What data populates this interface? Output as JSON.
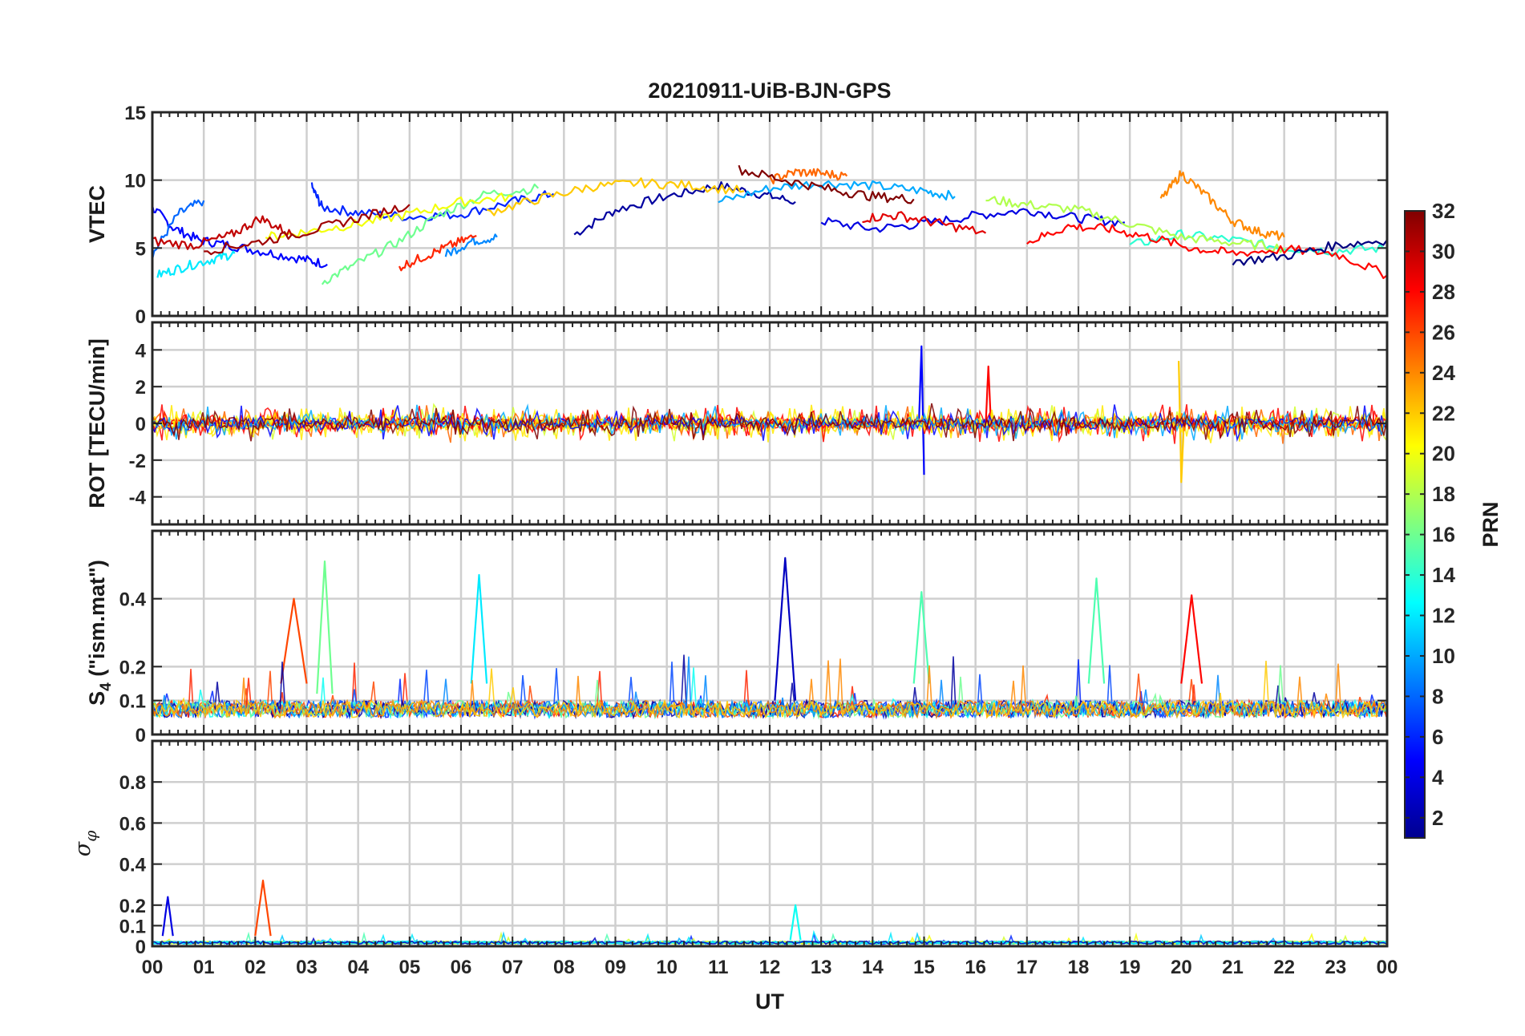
{
  "chart_data": {
    "type": "line",
    "title": "20210911-UiB-BJN-GPS",
    "xlabel": "UT",
    "x_tick_labels": [
      "00",
      "01",
      "02",
      "03",
      "04",
      "05",
      "06",
      "07",
      "08",
      "09",
      "10",
      "11",
      "12",
      "13",
      "14",
      "15",
      "16",
      "17",
      "18",
      "19",
      "20",
      "21",
      "22",
      "23",
      "00"
    ],
    "xlim_hours": [
      0,
      24
    ],
    "grid": true,
    "colormap": "jet",
    "colorbar": {
      "label": "PRN",
      "range": [
        1,
        32
      ],
      "tick_labels": [
        "2",
        "4",
        "6",
        "8",
        "10",
        "12",
        "14",
        "16",
        "18",
        "20",
        "22",
        "24",
        "26",
        "28",
        "30",
        "32"
      ],
      "placement": "right"
    },
    "panels": [
      {
        "ylabel": "VTEC",
        "ylim": [
          0,
          15
        ],
        "yticks": [
          0,
          5,
          10,
          15
        ],
        "tick_labels": [
          "0",
          "5",
          "10",
          "15"
        ],
        "series": [
          {
            "prn": 2,
            "x": [
              8.2,
              9.0,
              10.0,
              11.0,
              11.8,
              12.5
            ],
            "y": [
              6.0,
              7.8,
              8.8,
              9.6,
              9.0,
              8.4
            ]
          },
          {
            "prn": 5,
            "x": [
              0.0,
              0.4,
              0.9,
              1.5,
              2.2,
              2.9,
              3.4
            ],
            "y": [
              8.0,
              6.5,
              5.6,
              5.2,
              4.7,
              4.2,
              3.8
            ]
          },
          {
            "prn": 8,
            "x": [
              0.0,
              0.5,
              1.0
            ],
            "y": [
              4.5,
              7.5,
              8.5
            ]
          },
          {
            "prn": 6,
            "x": [
              3.1,
              3.3,
              4.0,
              5.0,
              6.0,
              7.0,
              7.8
            ],
            "y": [
              9.5,
              8.0,
              7.6,
              7.3,
              7.5,
              8.4,
              9.0
            ]
          },
          {
            "prn": 4,
            "x": [
              13.0,
              14.0,
              15.0,
              16.0,
              17.0,
              18.0,
              18.9
            ],
            "y": [
              7.0,
              6.4,
              6.8,
              7.4,
              7.8,
              7.2,
              6.9
            ]
          },
          {
            "prn": 9,
            "x": [
              5.7,
              6.2,
              6.7
            ],
            "y": [
              4.5,
              5.5,
              5.8
            ]
          },
          {
            "prn": 10,
            "x": [
              11.0,
              12.0,
              13.0,
              14.0,
              15.0,
              15.6
            ],
            "y": [
              8.4,
              9.4,
              9.8,
              9.6,
              9.2,
              8.8
            ]
          },
          {
            "prn": 12,
            "x": [
              0.1,
              0.6,
              1.2,
              1.6
            ],
            "y": [
              3.0,
              3.6,
              4.2,
              4.6
            ]
          },
          {
            "prn": 14,
            "x": [
              19.0,
              20.0,
              21.0,
              22.0,
              23.0,
              24.0
            ],
            "y": [
              5.2,
              6.0,
              5.6,
              5.0,
              4.8,
              5.0
            ]
          },
          {
            "prn": 16,
            "x": [
              3.3,
              4.0,
              4.8,
              5.6,
              6.5,
              7.5
            ],
            "y": [
              2.5,
              3.9,
              5.5,
              7.5,
              9.0,
              9.4
            ]
          },
          {
            "prn": 18,
            "x": [
              16.2,
              17.0,
              18.0,
              19.0,
              20.0,
              21.0,
              22.0
            ],
            "y": [
              8.6,
              8.2,
              7.8,
              6.8,
              5.8,
              5.4,
              5.0
            ]
          },
          {
            "prn": 20,
            "x": [
              2.2,
              3.0,
              4.0,
              5.0,
              6.0,
              7.0
            ],
            "y": [
              5.8,
              6.2,
              6.8,
              7.5,
              8.4,
              8.8
            ]
          },
          {
            "prn": 22,
            "x": [
              6.5,
              7.5,
              8.5,
              9.5,
              10.5,
              11.5
            ],
            "y": [
              7.6,
              8.6,
              9.5,
              9.8,
              9.6,
              9.2
            ]
          },
          {
            "prn": 24,
            "x": [
              19.6,
              20.0,
              20.5,
              21.0,
              21.5,
              22.0
            ],
            "y": [
              8.5,
              10.5,
              8.8,
              7.0,
              6.2,
              5.8
            ]
          },
          {
            "prn": 25,
            "x": [
              12.0,
              12.5,
              13.0,
              13.5
            ],
            "y": [
              10.0,
              10.6,
              10.5,
              10.3
            ]
          },
          {
            "prn": 27,
            "x": [
              4.8,
              5.3,
              5.8,
              6.3
            ],
            "y": [
              3.6,
              4.4,
              5.2,
              5.9
            ]
          },
          {
            "prn": 29,
            "x": [
              13.8,
              14.5,
              15.3,
              16.2
            ],
            "y": [
              7.2,
              7.4,
              6.8,
              6.1
            ]
          },
          {
            "prn": 30,
            "x": [
              0.0,
              0.8,
              1.5,
              2.1,
              2.7
            ],
            "y": [
              5.5,
              5.2,
              5.9,
              7.2,
              6.0
            ]
          },
          {
            "prn": 31,
            "x": [
              1.0,
              2.0,
              3.0,
              4.0,
              5.0
            ],
            "y": [
              4.8,
              5.4,
              6.2,
              7.2,
              8.2
            ]
          },
          {
            "prn": 32,
            "x": [
              11.4,
              12.3,
              13.2,
              14.0,
              14.8
            ],
            "y": [
              10.8,
              10.0,
              9.3,
              8.8,
              8.6
            ]
          },
          {
            "prn": 28,
            "x": [
              17.0,
              17.8,
              18.6,
              19.4,
              20.2,
              21.0,
              22.0,
              23.0,
              24.0
            ],
            "y": [
              5.4,
              6.6,
              6.4,
              5.8,
              5.0,
              4.6,
              4.9,
              4.6,
              3.0
            ]
          },
          {
            "prn": 1,
            "x": [
              21.0,
              22.0,
              23.0,
              24.0
            ],
            "y": [
              4.0,
              4.4,
              5.2,
              5.6
            ]
          }
        ]
      },
      {
        "ylabel": "ROT [TECU/min]",
        "ylim": [
          -5.5,
          5.5
        ],
        "yticks": [
          -4,
          -2,
          0,
          2,
          4
        ],
        "tick_labels": [
          "-4",
          "-2",
          "0",
          "2",
          "4"
        ],
        "series": [
          {
            "prn": 30,
            "x": [
              0.0,
              2.0,
              4.0,
              6.0,
              8.0,
              10.0,
              12.0,
              14.0,
              16.0,
              18.0,
              20.0,
              22.0,
              24.0
            ],
            "y": [
              0,
              0,
              0,
              0,
              0,
              0,
              0,
              0,
              0,
              0,
              0,
              0,
              0
            ]
          },
          {
            "prn": 5,
            "x": [
              14.9,
              14.95,
              15.0
            ],
            "y": [
              0.0,
              4.2,
              -2.8
            ]
          },
          {
            "prn": 28,
            "x": [
              16.2,
              16.25,
              16.3
            ],
            "y": [
              0.0,
              3.1,
              0.0
            ]
          },
          {
            "prn": 22,
            "x": [
              19.95,
              20.0,
              20.05
            ],
            "y": [
              3.4,
              -3.2,
              0.0
            ]
          }
        ]
      },
      {
        "ylabel": "S4 (\"ism.mat\")",
        "ylim": [
          0,
          0.6
        ],
        "yticks": [
          0,
          0.1,
          0.2,
          0.4
        ],
        "tick_labels": [
          "0",
          "0.1",
          "0.2",
          "0.4"
        ],
        "series": [
          {
            "prn": 3,
            "x": [
              12.1,
              12.3,
              12.5
            ],
            "y": [
              0.1,
              0.52,
              0.1
            ]
          },
          {
            "prn": 16,
            "x": [
              3.2,
              3.35,
              3.5
            ],
            "y": [
              0.12,
              0.51,
              0.12
            ]
          },
          {
            "prn": 15,
            "x": [
              18.2,
              18.35,
              18.5
            ],
            "y": [
              0.15,
              0.46,
              0.15
            ]
          },
          {
            "prn": 28,
            "x": [
              20.0,
              20.2,
              20.4
            ],
            "y": [
              0.15,
              0.41,
              0.15
            ]
          },
          {
            "prn": 26,
            "x": [
              2.5,
              2.75,
              3.0
            ],
            "y": [
              0.15,
              0.4,
              0.15
            ]
          },
          {
            "prn": 12,
            "x": [
              6.2,
              6.35,
              6.5
            ],
            "y": [
              0.15,
              0.47,
              0.15
            ]
          },
          {
            "prn": 15,
            "x": [
              14.8,
              14.95,
              15.1
            ],
            "y": [
              0.15,
              0.42,
              0.15
            ]
          }
        ]
      },
      {
        "ylabel": "σφ",
        "ylim": [
          0,
          1.0
        ],
        "yticks": [
          0,
          0.1,
          0.2,
          0.4,
          0.6,
          0.8
        ],
        "tick_labels": [
          "0",
          "0.1",
          "0.2",
          "0.4",
          "0.6",
          "0.8"
        ],
        "series": [
          {
            "prn": 26,
            "x": [
              2.0,
              2.15,
              2.3
            ],
            "y": [
              0.05,
              0.32,
              0.05
            ]
          },
          {
            "prn": 4,
            "x": [
              0.2,
              0.3,
              0.4
            ],
            "y": [
              0.05,
              0.24,
              0.05
            ]
          },
          {
            "prn": 13,
            "x": [
              12.4,
              12.5,
              12.6
            ],
            "y": [
              0.03,
              0.2,
              0.03
            ]
          }
        ]
      }
    ]
  }
}
